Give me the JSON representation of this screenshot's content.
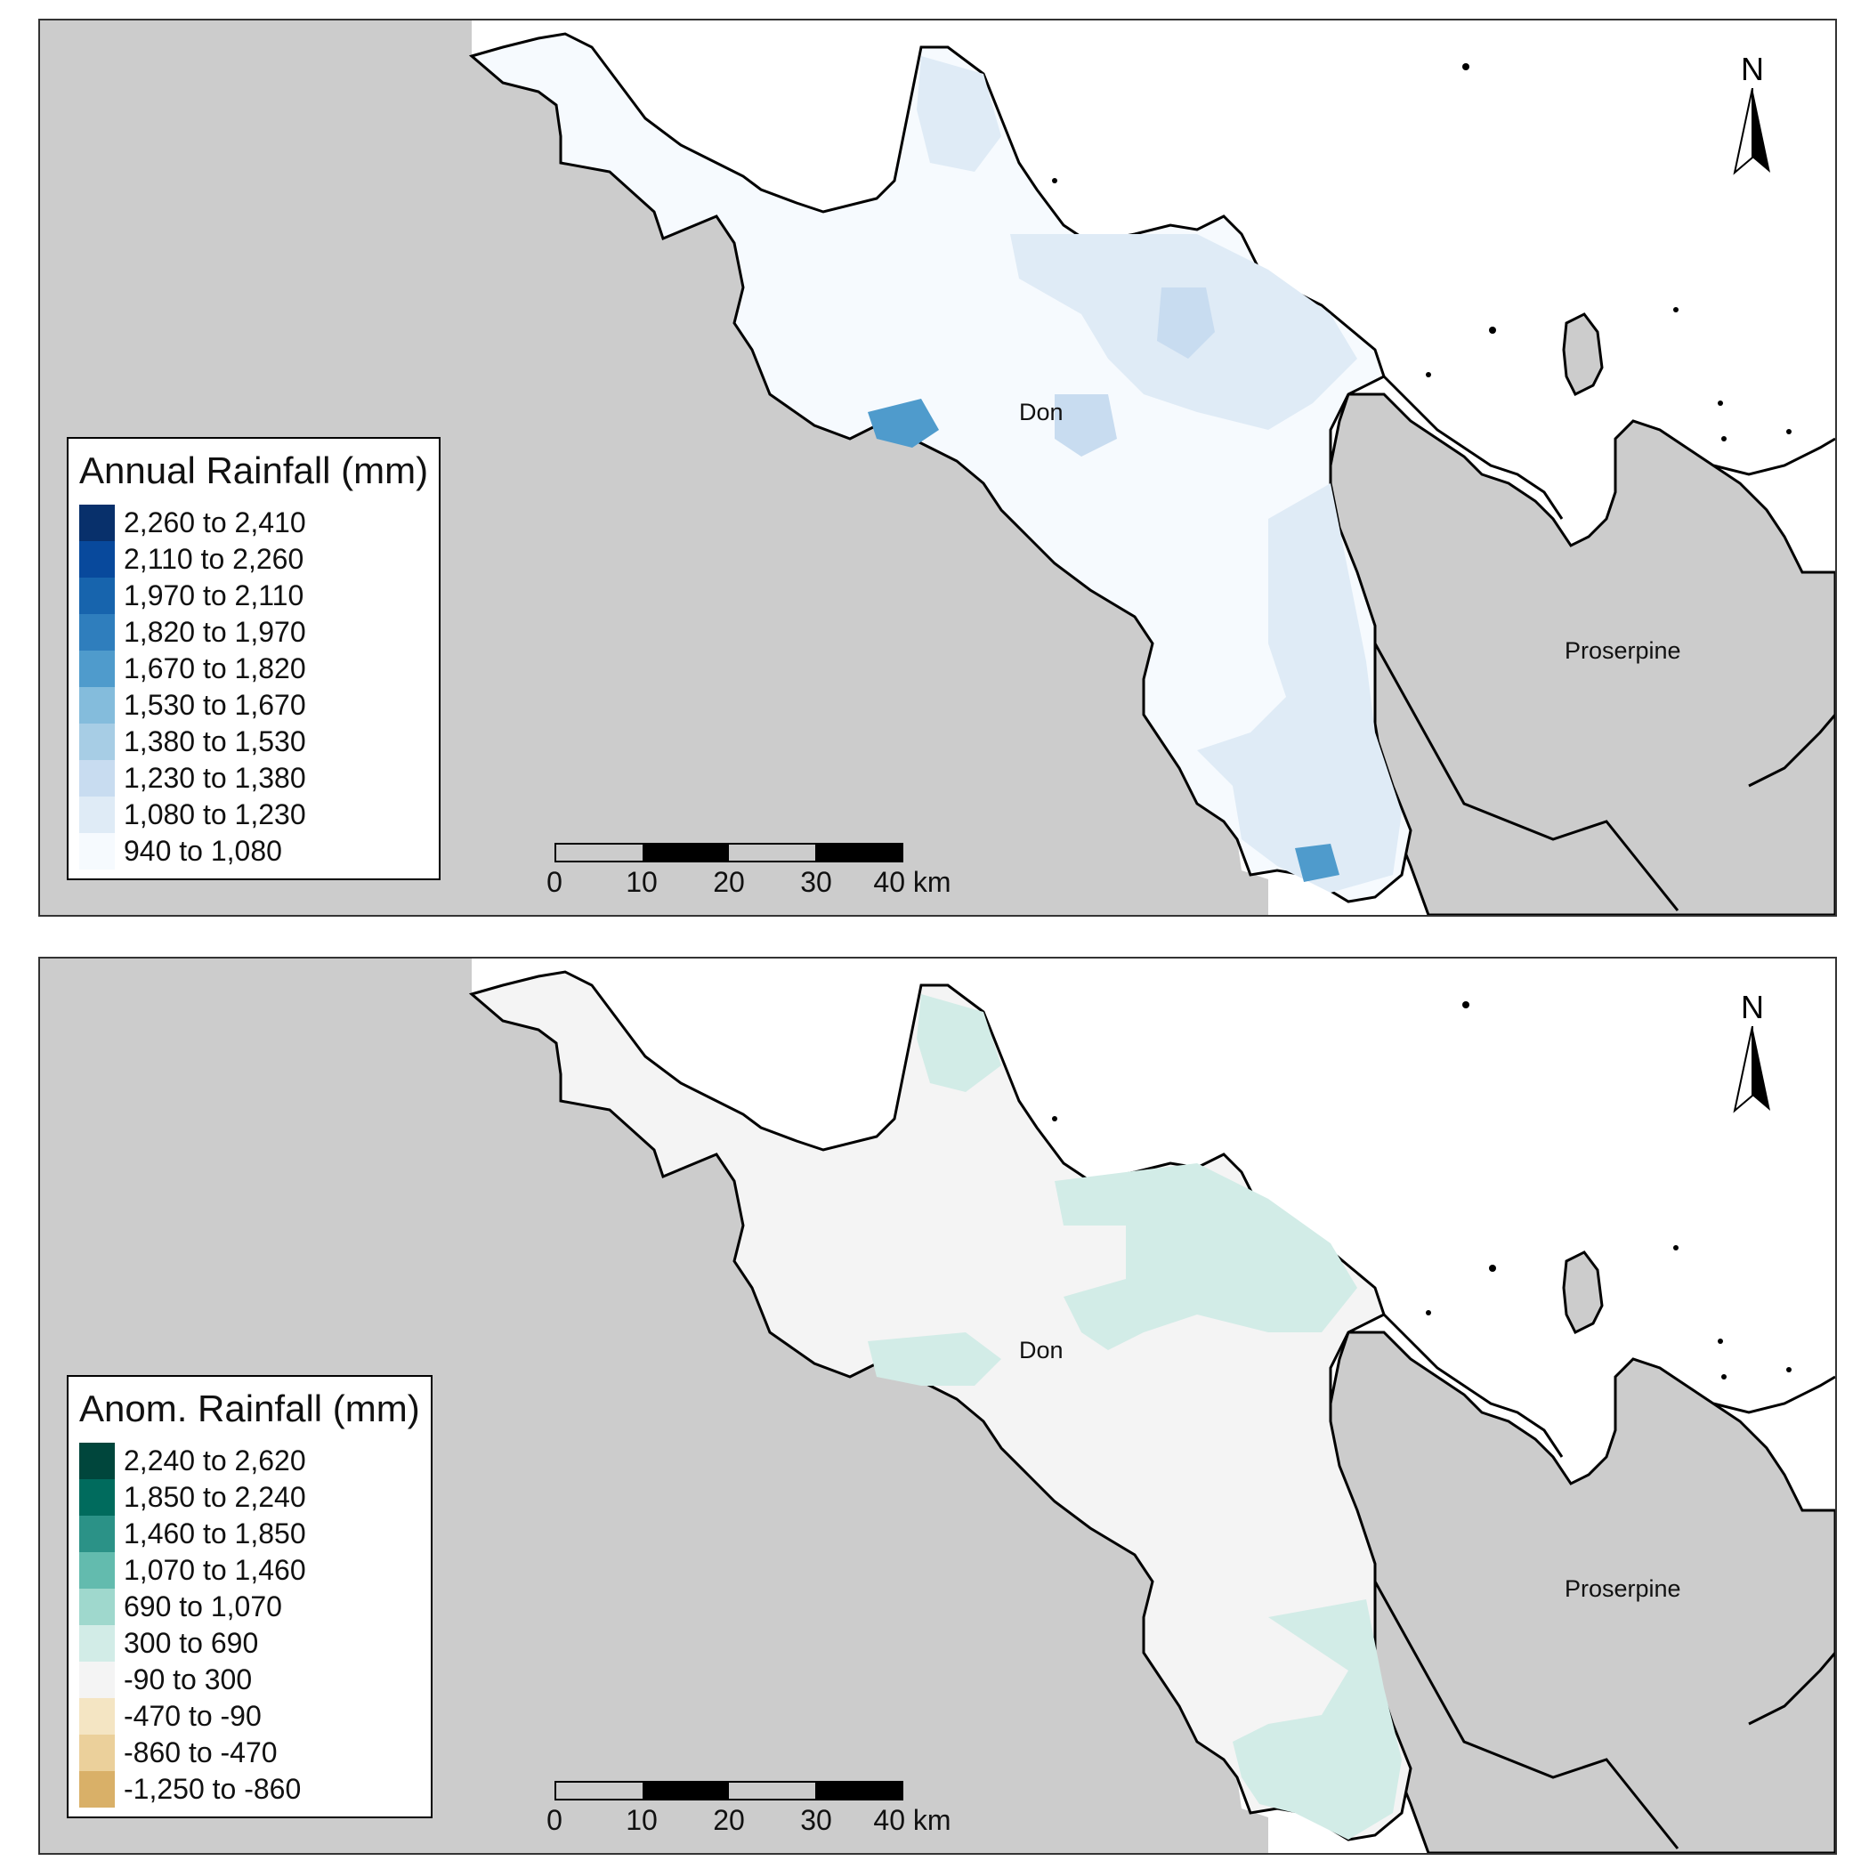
{
  "panels": [
    {
      "id": "annual",
      "legend": {
        "title": "Annual Rainfall (mm)",
        "items": [
          {
            "label": "2,260 to 2,410",
            "color": "#08306b"
          },
          {
            "label": "2,110 to 2,260",
            "color": "#08499c"
          },
          {
            "label": "1,970 to 2,110",
            "color": "#1764ad"
          },
          {
            "label": "1,820 to 1,970",
            "color": "#2f7ebd"
          },
          {
            "label": "1,670 to 1,820",
            "color": "#4f9bcc"
          },
          {
            "label": "1,530 to 1,670",
            "color": "#84bcdc"
          },
          {
            "label": "1,380 to 1,530",
            "color": "#a7cde5"
          },
          {
            "label": "1,230 to 1,380",
            "color": "#c8dcf0"
          },
          {
            "label": "1,080 to 1,230",
            "color": "#dfebf6"
          },
          {
            "label": "940 to 1,080",
            "color": "#f6fafe"
          }
        ]
      },
      "fill_base": "#f6fafe",
      "fill_patch": "#dfebf6",
      "fill_patch2": "#c8dcf0",
      "fill_hot": "#4f9bcc"
    },
    {
      "id": "anomaly",
      "legend": {
        "title": "Anom. Rainfall (mm)",
        "items": [
          {
            "label": "2,240 to 2,620",
            "color": "#00463c"
          },
          {
            "label": "1,850 to 2,240",
            "color": "#006b5d"
          },
          {
            "label": "1,460 to 1,850",
            "color": "#2b9287"
          },
          {
            "label": "1,070 to 1,460",
            "color": "#63bbae"
          },
          {
            "label": "690 to 1,070",
            "color": "#9fd8cd"
          },
          {
            "label": "300 to 690",
            "color": "#d2ece7"
          },
          {
            "label": "-90 to 300",
            "color": "#f4f4f4"
          },
          {
            "label": "-470 to -90",
            "color": "#f4e5c3"
          },
          {
            "label": "-860 to -470",
            "color": "#ebd09b"
          },
          {
            "label": "-1,250 to -860",
            "color": "#d9b068"
          }
        ]
      },
      "fill_base": "#f4f4f4",
      "fill_patch": "#d2ece7",
      "fill_patch2": "#d2ece7",
      "fill_hot": "#d2ece7"
    }
  ],
  "places": {
    "don": "Don",
    "proserpine": "Proserpine"
  },
  "north_label": "N",
  "scale": {
    "ticks": [
      "0",
      "10",
      "20",
      "30",
      "40 km"
    ]
  },
  "colors": {
    "land_outside": "#cccccc",
    "sea": "#ffffff",
    "boundary": "#000000"
  }
}
